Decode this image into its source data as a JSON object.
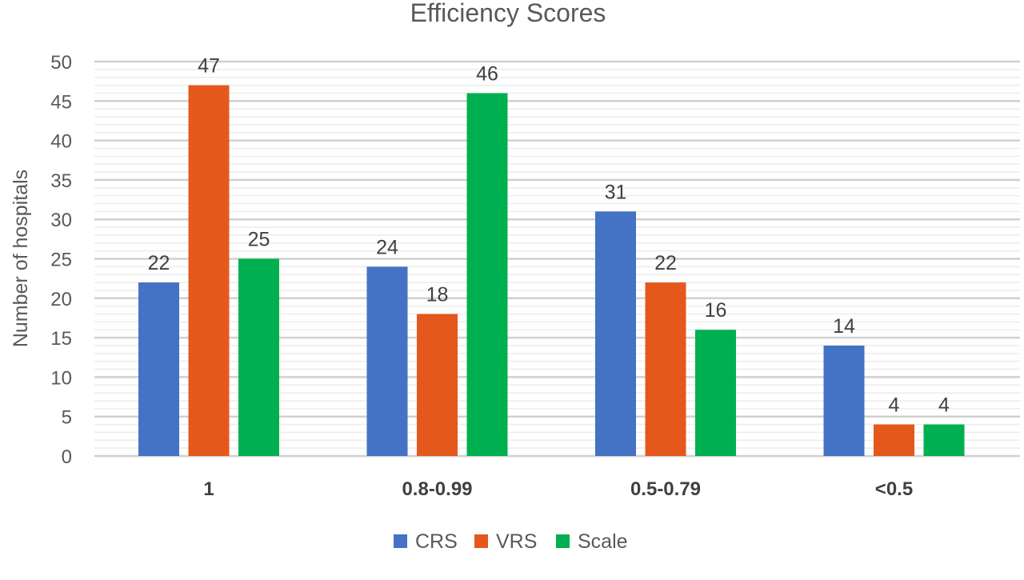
{
  "chart_data": {
    "type": "bar",
    "title": "Efficiency Scores",
    "xlabel": "",
    "ylabel": "Number of hospitals",
    "ylim": [
      0,
      50
    ],
    "yticks": [
      0,
      5,
      10,
      15,
      20,
      25,
      30,
      35,
      40,
      45,
      50
    ],
    "grid": true,
    "legend_position": "bottom",
    "categories": [
      "1",
      "0.8-0.99",
      "0.5-0.79",
      "<0.5"
    ],
    "series": [
      {
        "name": "CRS",
        "color": "#4472C4",
        "values": [
          22,
          24,
          31,
          14
        ]
      },
      {
        "name": "VRS",
        "color": "#E5581C",
        "values": [
          47,
          18,
          22,
          4
        ]
      },
      {
        "name": "Scale",
        "color": "#00B050",
        "values": [
          25,
          46,
          16,
          4
        ]
      }
    ]
  }
}
